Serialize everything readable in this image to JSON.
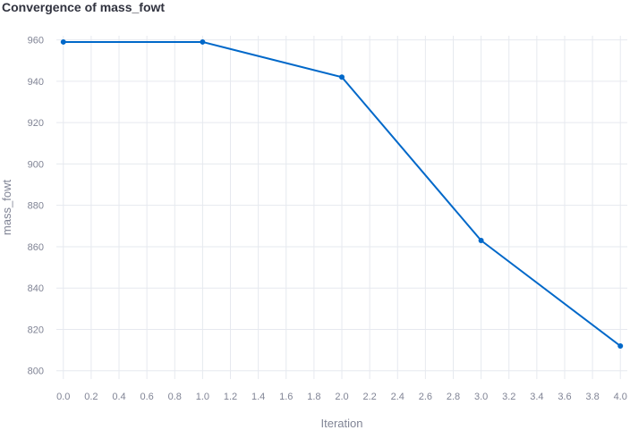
{
  "chart_data": {
    "type": "line",
    "title": "Convergence of mass_fowt",
    "xlabel": "Iteration",
    "ylabel": "mass_fowt",
    "x": [
      0,
      1,
      2,
      3,
      4
    ],
    "series": [
      {
        "values": [
          959,
          959,
          942,
          863,
          812
        ]
      }
    ],
    "xlim": [
      -0.05,
      4.05
    ],
    "ylim": [
      796,
      962
    ],
    "xticks": [
      0.0,
      0.2,
      0.4,
      0.6,
      0.8,
      1.0,
      1.2,
      1.4,
      1.6,
      1.8,
      2.0,
      2.2,
      2.4,
      2.6,
      2.8,
      3.0,
      3.2,
      3.4,
      3.6,
      3.8,
      4.0
    ],
    "xtick_labels": [
      "0.0",
      "0.2",
      "0.4",
      "0.6",
      "0.8",
      "1.0",
      "1.2",
      "1.4",
      "1.6",
      "1.8",
      "2.0",
      "2.2",
      "2.4",
      "2.6",
      "2.8",
      "3.0",
      "3.2",
      "3.4",
      "3.6",
      "3.8",
      "4.0"
    ],
    "yticks": [
      800,
      820,
      840,
      860,
      880,
      900,
      920,
      940,
      960
    ],
    "ytick_labels": [
      "800",
      "820",
      "840",
      "860",
      "880",
      "900",
      "920",
      "940",
      "960"
    ],
    "grid": true,
    "colors": {
      "line": "#0068c9",
      "grid": "#e6e9ef",
      "text": "#808495",
      "title": "#31333f"
    }
  }
}
